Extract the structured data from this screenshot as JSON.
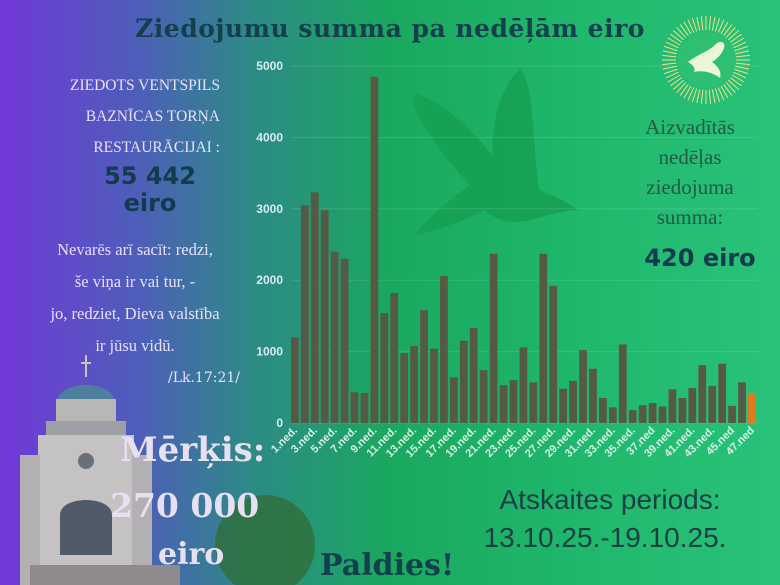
{
  "header": {
    "title": "Ziedojumu summa pa nedēļām eiro"
  },
  "left": {
    "donated_lines": [
      "ZIEDOTS VENTSPILS",
      "BAZNĪCAS TORŅA",
      "RESTAURĀCIJAI :"
    ],
    "total_amount": "55 442",
    "total_unit": "eiro",
    "verse_lines": [
      "Nevarēs arī sacīt: redzi,",
      "še viņa ir vai tur, -",
      "jo, redziet, Dieva valstība",
      "ir jūsu vidū."
    ],
    "verse_ref": "/Lk.17:21/",
    "goal_label": "Mērķis:",
    "goal_value": "270 000",
    "goal_unit": "eiro"
  },
  "right": {
    "last_week_lines": [
      "Aizvadītās",
      "nedēļas",
      "ziedojuma",
      "summa:"
    ],
    "last_week_value": "420 eiro",
    "period_label": "Atskaites periods:",
    "period_value": "13.10.25.-19.10.25."
  },
  "footer": {
    "thanks": "Paldies!"
  },
  "colors": {
    "bar": "#555a45",
    "highlight_bar": "#e07a1e",
    "title": "#143f4d"
  },
  "icons": [
    "dove-logo-icon",
    "dove-silhouette-icon",
    "church-tower-image"
  ],
  "chart_data": {
    "type": "bar",
    "categories": [
      "1.ned.",
      "2.ned.",
      "3.ned.",
      "4.ned.",
      "5.ned.",
      "6.ned.",
      "7.ned.",
      "8.ned.",
      "9.ned.",
      "10.ned.",
      "11.ned.",
      "12.ned.",
      "13.ned.",
      "14.ned.",
      "15.ned.",
      "16.ned.",
      "17.ned.",
      "18.ned.",
      "19.ned.",
      "20.ned.",
      "21.ned.",
      "22.ned.",
      "23.ned.",
      "24.ned.",
      "25.ned.",
      "26.ned.",
      "27.ned.",
      "28.ned.",
      "29.ned.",
      "30.ned.",
      "31.ned.",
      "32.ned.",
      "33.ned.",
      "34.ned.",
      "35.ned.",
      "36.ned.",
      "37.ned",
      "38.ned",
      "39.ned.",
      "40.ned.",
      "41.ned.",
      "42.ned.",
      "43.ned.",
      "44.ned.",
      "45.ned",
      "46.ned",
      "47.ned"
    ],
    "shown_tick_labels": [
      "1.ned.",
      "3.ned.",
      "5.ned.",
      "7.ned.",
      "9.ned.",
      "11.ned.",
      "13.ned.",
      "15.ned.",
      "17.ned.",
      "19.ned.",
      "21.ned.",
      "23.ned.",
      "25.ned.",
      "27.ned.",
      "29.ned.",
      "31.ned.",
      "33.ned.",
      "35.ned.",
      "37.ned",
      "39.ned.",
      "41.ned.",
      "43.ned.",
      "45.ned",
      "47.ned"
    ],
    "values": [
      1200,
      3050,
      3230,
      2980,
      2400,
      2300,
      430,
      420,
      4850,
      1540,
      1820,
      980,
      1080,
      1580,
      1040,
      2060,
      640,
      1150,
      1330,
      740,
      2370,
      530,
      600,
      1060,
      570,
      2370,
      1920,
      480,
      590,
      1020,
      760,
      350,
      220,
      1100,
      180,
      250,
      280,
      230,
      470,
      350,
      490,
      810,
      520,
      830,
      240,
      570,
      420
    ],
    "highlight_index": 46,
    "title": "Ziedojumu summa pa nedēļām eiro",
    "xlabel": "",
    "ylabel": "",
    "ylim": [
      0,
      5000
    ],
    "yticks": [
      0,
      1000,
      2000,
      3000,
      4000,
      5000
    ],
    "grid": true
  }
}
